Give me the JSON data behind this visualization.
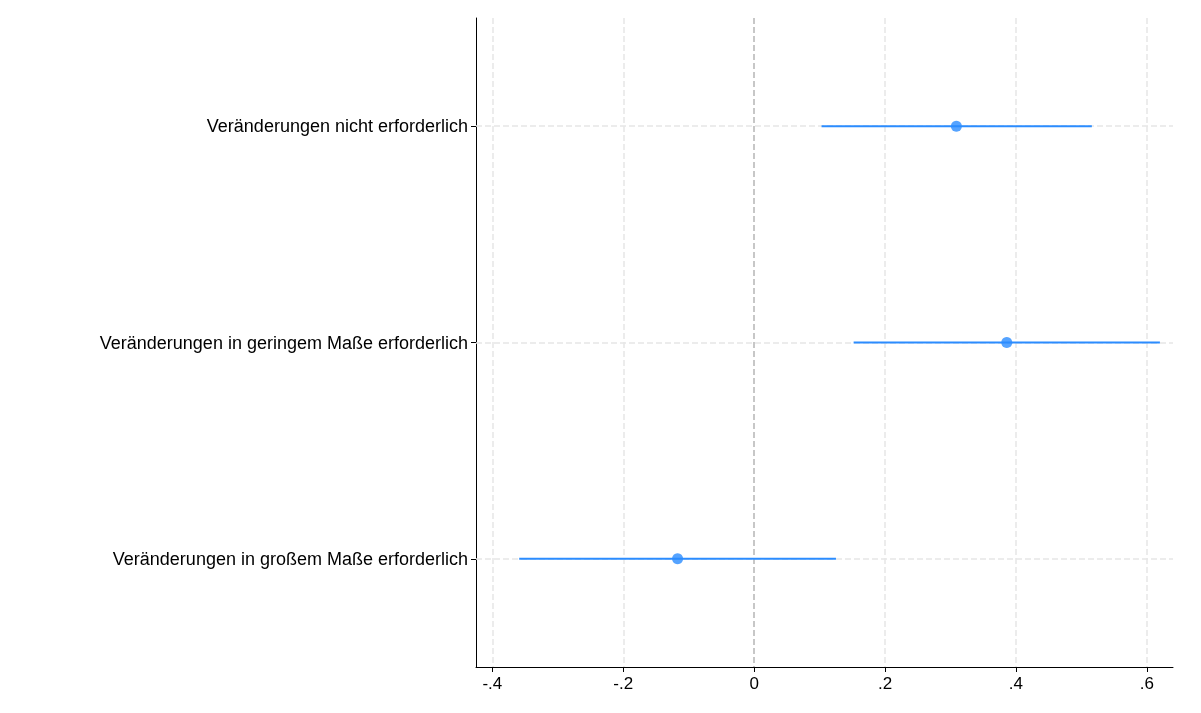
{
  "chart_data": {
    "type": "scatter",
    "orientation": "horizontal",
    "categories": [
      "Veränderungen nicht erforderlich",
      "Veränderungen in geringem Maße erforderlich",
      "Veränderungen in großem Maße erforderlich"
    ],
    "series": [
      {
        "color": "#2b8cff",
        "values": [
          0.309,
          0.386,
          -0.117
        ],
        "errors": [
          [
            0.103,
            0.516
          ],
          [
            0.152,
            0.62
          ],
          [
            -0.359,
            0.125
          ]
        ]
      }
    ],
    "xlim": [
      -0.425,
      0.64
    ],
    "xticks": [
      {
        "value": -0.4,
        "label": "-.4"
      },
      {
        "value": -0.2,
        "label": "-.2"
      },
      0,
      {
        "value": 0.2,
        "label": ".2"
      },
      {
        "value": 0.4,
        "label": ".4"
      },
      {
        "value": 0.6,
        "label": ".6"
      }
    ],
    "ref_lines": [
      {
        "axis": "x",
        "value": 0,
        "color": "#bbbbbb",
        "line_style": "dashed"
      }
    ],
    "grid": true,
    "marker": "circle"
  }
}
